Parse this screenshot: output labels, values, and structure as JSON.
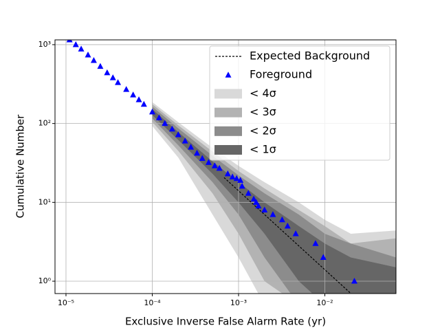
{
  "chart_data": {
    "type": "scatter",
    "x_label": "Exclusive Inverse False Alarm Rate (yr)",
    "y_label": "Cumulative Number",
    "xscale": "log",
    "yscale": "log",
    "grid": true,
    "legend": "upper right",
    "xlim": [
      7.46e-06,
      0.0668
    ],
    "ylim": [
      0.697,
      1150
    ],
    "xticks": [
      {
        "value": 1e-05,
        "label": "10⁻⁵"
      },
      {
        "value": 0.0001,
        "label": "10⁻⁴"
      },
      {
        "value": 0.001,
        "label": "10⁻³"
      },
      {
        "value": 0.01,
        "label": "10⁻²"
      }
    ],
    "yticks": [
      {
        "value": 1,
        "label": "10⁰"
      },
      {
        "value": 10,
        "label": "10¹"
      },
      {
        "value": 100,
        "label": "10²"
      },
      {
        "value": 1000,
        "label": "10³"
      }
    ],
    "series": [
      {
        "name": "Expected Background",
        "kind": "line",
        "color": "#000000",
        "x": [
          0.00068,
          0.02
        ],
        "y": [
          20.6,
          0.7
        ]
      },
      {
        "name": "Foreground",
        "kind": "points",
        "color": "#0000ff",
        "x": [
          1.1e-05,
          1.3e-05,
          1.5e-05,
          1.8e-05,
          2.1e-05,
          2.5e-05,
          3e-05,
          3.5e-05,
          4e-05,
          5e-05,
          6e-05,
          7e-05,
          8e-05,
          0.0001,
          0.00012,
          0.00014,
          0.00017,
          0.0002,
          0.00024,
          0.00028,
          0.00033,
          0.00038,
          0.00045,
          0.00053,
          0.0006,
          0.00075,
          0.00085,
          0.00095,
          0.00105,
          0.0011,
          0.0013,
          0.0015,
          0.0016,
          0.0017,
          0.002,
          0.0025,
          0.0032,
          0.0037,
          0.0046,
          0.0078,
          0.0096,
          0.022
        ],
        "y": [
          1150,
          1000,
          880,
          740,
          630,
          530,
          440,
          380,
          330,
          270,
          230,
          200,
          175,
          140,
          118,
          100,
          85,
          72,
          60,
          50,
          42,
          36,
          32,
          29,
          27,
          23,
          21,
          20,
          19,
          16,
          13,
          11,
          10,
          9,
          8,
          7,
          6,
          5,
          4,
          3,
          2,
          1
        ]
      },
      {
        "name": "< 4σ",
        "kind": "band",
        "color": "#d9d9d9",
        "x": [
          0.0001,
          0.0002,
          0.0005,
          0.001,
          0.002,
          0.005,
          0.01,
          0.02,
          0.0668
        ],
        "lower": [
          93,
          37,
          7,
          2,
          0.5,
          0.5,
          0.5,
          0.5,
          0.5
        ],
        "upper": [
          187,
          104,
          49,
          29,
          18,
          10,
          6,
          4,
          4.4
        ]
      },
      {
        "name": "< 3σ",
        "kind": "band",
        "color": "#b3b3b3",
        "x": [
          0.0001,
          0.0002,
          0.0005,
          0.001,
          0.002,
          0.005,
          0.01,
          0.02,
          0.0668
        ],
        "lower": [
          105,
          45,
          13,
          4,
          1,
          0.5,
          0.5,
          0.5,
          0.5
        ],
        "upper": [
          176,
          95,
          44,
          25,
          15,
          8,
          5,
          3,
          3.5
        ]
      },
      {
        "name": "< 2σ",
        "kind": "band",
        "color": "#8c8c8c",
        "x": [
          0.0001,
          0.0002,
          0.0005,
          0.001,
          0.002,
          0.005,
          0.01,
          0.02,
          0.0668
        ],
        "lower": [
          116,
          53,
          18,
          7,
          2,
          0.5,
          0.5,
          0.5,
          0.5
        ],
        "upper": [
          164,
          87,
          39,
          22,
          13,
          7,
          4,
          3,
          2
        ]
      },
      {
        "name": "< 1σ",
        "kind": "band",
        "color": "#666666",
        "x": [
          0.0001,
          0.0002,
          0.0005,
          0.001,
          0.002,
          0.005,
          0.01,
          0.02,
          0.0668
        ],
        "lower": [
          128,
          62,
          23,
          10,
          4,
          1,
          0.5,
          0.5,
          0.5
        ],
        "upper": [
          152,
          78,
          33,
          18,
          10,
          5,
          3,
          2,
          1.5
        ]
      }
    ]
  }
}
